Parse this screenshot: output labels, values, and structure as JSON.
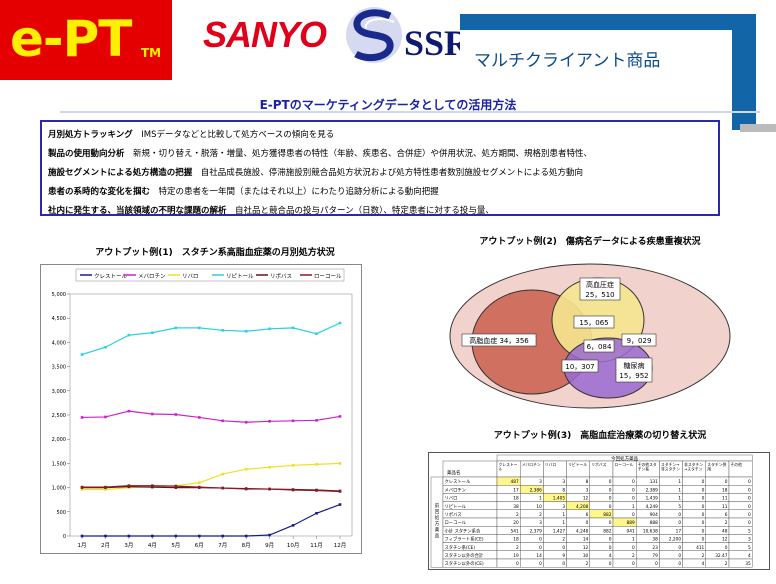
{
  "logo": {
    "text": "e-PT",
    "tm": "TM"
  },
  "brand": {
    "sanyo": "SANYO",
    "ssri": "SSRI"
  },
  "header": {
    "title": "マルチクライアント商品"
  },
  "subtitle": "E-PTのマーケティングデータとしての活用方法",
  "bullets": [
    {
      "head": "月別処方トラッキング",
      "body": "　IMSデータなどと比較して処方ベースの傾向を見る"
    },
    {
      "head": "製品の使用動向分析",
      "body": "　新規・切り替え・脱落・増量、処方獲得患者の特性（年齢、疾患名、合併症）や併用状況、処方期間、規格別患者特性、"
    },
    {
      "head": "施設セグメントによる処方構造の把握",
      "body": "　自社品成長施設、停滞施設別競合品処方状況および処方特性患者数別施設セグメントによる処方動向"
    },
    {
      "head": "患者の系時的な変化を掴む",
      "body": "　特定の患者を一年間（またはそれ以上）にわたり追跡分析による動向把握"
    },
    {
      "head": "社内に発生する、当該領域の不明な課題の解析",
      "body": "　自社品と競合品の投与パターン（日数）、特定患者に対する投与量、"
    }
  ],
  "output1": {
    "title": "アウトプット例(1)　スタチン系高脂血症薬の月別処方状況"
  },
  "chart_data": {
    "type": "line",
    "categories": [
      "1月",
      "2月",
      "3月",
      "4月",
      "5月",
      "6月",
      "7月",
      "8月",
      "9月",
      "10月",
      "11月",
      "12月"
    ],
    "yticks": [
      "0",
      "500",
      "1,000",
      "1,500",
      "2,000",
      "2,500",
      "3,000",
      "3,500",
      "4,000",
      "4,500",
      "5,000"
    ],
    "ylim": [
      0,
      5000
    ],
    "series": [
      {
        "name": "クレストール",
        "color": "#1a1a8c",
        "values": [
          0,
          0,
          0,
          0,
          0,
          0,
          0,
          0,
          20,
          220,
          470,
          650
        ]
      },
      {
        "name": "メバロチン",
        "color": "#cc22cc",
        "values": [
          2450,
          2460,
          2580,
          2520,
          2510,
          2450,
          2380,
          2350,
          2370,
          2380,
          2390,
          2470
        ]
      },
      {
        "name": "リバロ",
        "color": "#f0e020",
        "values": [
          960,
          960,
          1000,
          1020,
          1040,
          1100,
          1280,
          1380,
          1420,
          1460,
          1480,
          1500
        ]
      },
      {
        "name": "リピトール",
        "color": "#30d0e0",
        "values": [
          3750,
          3900,
          4150,
          4200,
          4300,
          4300,
          4250,
          4230,
          4280,
          4300,
          4180,
          4400
        ]
      },
      {
        "name": "リポバス",
        "color": "#5a1a1a",
        "values": [
          1000,
          1000,
          1020,
          1010,
          1000,
          1000,
          990,
          980,
          970,
          960,
          950,
          930
        ]
      },
      {
        "name": "ローコール",
        "color": "#8a1a2a",
        "values": [
          1010,
          1010,
          1040,
          1040,
          1030,
          1010,
          990,
          970,
          970,
          950,
          940,
          920
        ]
      }
    ]
  },
  "output2": {
    "title": "アウトプット例(2)　傷病名データによる疾患重複状況",
    "labels": {
      "hyperlipid": "高脂血症",
      "hyperlipid_n": "34，356",
      "hypertension": "高血圧症",
      "hypertension_n": "25，510",
      "overlap_ab": "15，065",
      "overlap_all": "6，084",
      "overlap_bc": "9，029",
      "overlap_ac": "10，307",
      "diabetes": "糖尿病",
      "diabetes_n": "15，952"
    }
  },
  "output3": {
    "title": "アウトプット例(3)　高脂血症治療薬の切り替え状況",
    "side_label": "前回処方薬品",
    "corner": "薬品名",
    "top_label": "今回処方薬品",
    "columns": [
      "クレストール",
      "メバロチン",
      "リバロ",
      "リピトール",
      "リポバス",
      "ローコール",
      "その他スタチン系",
      "スタチン→非スタチン",
      "非スタチン→スタチン",
      "スタチン併用",
      "その他"
    ],
    "rows": [
      {
        "name": "クレストール",
        "cells": [
          "487",
          "3",
          "3",
          "8",
          "0",
          "0",
          "131",
          "1",
          "0",
          "0",
          "0"
        ]
      },
      {
        "name": "メバロチン",
        "cells": [
          "17",
          "2,386",
          "8",
          "3",
          "0",
          "0",
          "2,389",
          "1",
          "0",
          "18",
          "0"
        ]
      },
      {
        "name": "リバロ",
        "cells": [
          "18",
          "1",
          "1,405",
          "12",
          "0",
          "0",
          "1,439",
          "1",
          "0",
          "11",
          "0"
        ]
      },
      {
        "name": "リピトール",
        "cells": [
          "38",
          "10",
          "3",
          "4,208",
          "0",
          "1",
          "4,249",
          "5",
          "0",
          "11",
          "0"
        ]
      },
      {
        "name": "リポバス",
        "cells": [
          "2",
          "2",
          "1",
          "6",
          "882",
          "0",
          "904",
          "0",
          "0",
          "6",
          "0"
        ]
      },
      {
        "name": "ローコール",
        "cells": [
          "20",
          "3",
          "1",
          "0",
          "0",
          "889",
          "888",
          "0",
          "0",
          "2",
          "0"
        ]
      },
      {
        "name": "小計 スタチン系合",
        "cells": [
          "541",
          "2,379",
          "1,427",
          "4,248",
          "882",
          "941",
          "10,638",
          "17",
          "0",
          "48",
          "5"
        ]
      },
      {
        "name": "フィブラート系(CE)",
        "cells": [
          "18",
          "0",
          "2",
          "14",
          "0",
          "1",
          "38",
          "2,200",
          "0",
          "12",
          "3"
        ]
      },
      {
        "name": "スタチン系(CE)",
        "cells": [
          "2",
          "0",
          "0",
          "12",
          "0",
          "0",
          "23",
          "0",
          "411",
          "0",
          "5"
        ]
      },
      {
        "name": "スタチン以外の合計",
        "cells": [
          "19",
          "14",
          "9",
          "30",
          "4",
          "2",
          "79",
          "0",
          "2",
          "32.47",
          "4"
        ]
      },
      {
        "name": "スタチン以外の(CE)",
        "cells": [
          "0",
          "0",
          "0",
          "2",
          "0",
          "0",
          "0",
          "0",
          "4",
          "2",
          "35"
        ]
      }
    ]
  }
}
